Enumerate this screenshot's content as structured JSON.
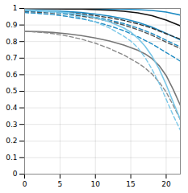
{
  "chart_data": {
    "type": "line",
    "xlim": [
      0,
      22
    ],
    "xticks": [
      0,
      5,
      10,
      15,
      20
    ],
    "ylim": [
      0,
      1.0
    ],
    "yticks": [
      0,
      0.1,
      0.2,
      0.3,
      0.4,
      0.5,
      0.6,
      0.7,
      0.8,
      0.9,
      1.0
    ],
    "grid": true,
    "series": [
      {
        "color": "#1e8bc3",
        "line_style": "solid",
        "x": [
          0,
          2,
          4,
          6,
          8,
          10,
          12,
          14,
          16,
          18,
          20,
          22
        ],
        "values": [
          1.0,
          0.999,
          0.999,
          0.998,
          0.998,
          0.997,
          0.996,
          0.995,
          0.993,
          0.988,
          0.978,
          0.96
        ]
      },
      {
        "color": "#111111",
        "line_style": "solid",
        "x": [
          0,
          2,
          4,
          6,
          8,
          10,
          12,
          14,
          16,
          18,
          20,
          22
        ],
        "values": [
          1.0,
          0.999,
          0.998,
          0.997,
          0.996,
          0.993,
          0.989,
          0.983,
          0.973,
          0.956,
          0.93,
          0.895
        ]
      },
      {
        "color": "#1e8bc3",
        "line_style": "solid",
        "x": [
          0,
          2,
          4,
          6,
          8,
          10,
          12,
          14,
          16,
          18,
          20,
          22
        ],
        "values": [
          0.99,
          0.988,
          0.985,
          0.981,
          0.975,
          0.966,
          0.954,
          0.938,
          0.916,
          0.887,
          0.85,
          0.81
        ]
      },
      {
        "color": "#333333",
        "line_style": "dashed",
        "x": [
          0,
          2,
          4,
          6,
          8,
          10,
          12,
          14,
          16,
          18,
          20,
          22
        ],
        "values": [
          0.985,
          0.983,
          0.979,
          0.974,
          0.967,
          0.957,
          0.944,
          0.928,
          0.907,
          0.881,
          0.847,
          0.815
        ]
      },
      {
        "color": "#555555",
        "line_style": "dashed",
        "x": [
          0,
          2,
          4,
          6,
          8,
          10,
          12,
          14,
          16,
          18,
          20,
          22
        ],
        "values": [
          0.98,
          0.977,
          0.972,
          0.964,
          0.954,
          0.94,
          0.922,
          0.9,
          0.872,
          0.838,
          0.797,
          0.758
        ]
      },
      {
        "color": "#1e8bc3",
        "line_style": "dashed",
        "x": [
          0,
          2,
          4,
          6,
          8,
          10,
          12,
          14,
          16,
          18,
          20,
          22
        ],
        "values": [
          0.985,
          0.982,
          0.977,
          0.97,
          0.96,
          0.947,
          0.93,
          0.909,
          0.882,
          0.849,
          0.808,
          0.768
        ]
      },
      {
        "color": "#1e8bc3",
        "line_style": "dashed",
        "x": [
          0,
          2,
          4,
          6,
          8,
          10,
          12,
          14,
          16,
          18,
          20,
          22
        ],
        "values": [
          0.975,
          0.97,
          0.963,
          0.952,
          0.938,
          0.919,
          0.895,
          0.866,
          0.829,
          0.786,
          0.734,
          0.682
        ]
      },
      {
        "color": "#777777",
        "line_style": "solid",
        "x": [
          0,
          2,
          4,
          6,
          8,
          10,
          12,
          14,
          16,
          17,
          18,
          19,
          20,
          21,
          22
        ],
        "values": [
          0.862,
          0.86,
          0.855,
          0.847,
          0.836,
          0.822,
          0.803,
          0.779,
          0.747,
          0.726,
          0.697,
          0.655,
          0.595,
          0.51,
          0.415
        ]
      },
      {
        "color": "#888888",
        "line_style": "dashed",
        "x": [
          0,
          2,
          4,
          6,
          8,
          10,
          12,
          14,
          16,
          17,
          18,
          19,
          20,
          21,
          22
        ],
        "values": [
          0.862,
          0.857,
          0.848,
          0.834,
          0.815,
          0.79,
          0.758,
          0.719,
          0.671,
          0.641,
          0.604,
          0.556,
          0.495,
          0.415,
          0.328
        ]
      },
      {
        "color": "#7cc8e8",
        "line_style": "solid",
        "x": [
          0,
          2,
          4,
          6,
          8,
          10,
          12,
          14,
          15,
          16,
          17,
          18,
          19,
          20,
          21,
          22
        ],
        "values": [
          0.99,
          0.987,
          0.982,
          0.974,
          0.962,
          0.944,
          0.919,
          0.882,
          0.857,
          0.82,
          0.773,
          0.712,
          0.635,
          0.54,
          0.433,
          0.33
        ]
      },
      {
        "color": "#7cc8e8",
        "line_style": "dashed",
        "x": [
          0,
          2,
          4,
          6,
          8,
          10,
          12,
          14,
          15,
          16,
          17,
          18,
          19,
          20,
          21,
          22
        ],
        "values": [
          0.99,
          0.985,
          0.976,
          0.963,
          0.944,
          0.918,
          0.882,
          0.833,
          0.803,
          0.762,
          0.705,
          0.633,
          0.548,
          0.452,
          0.354,
          0.265
        ]
      }
    ]
  }
}
